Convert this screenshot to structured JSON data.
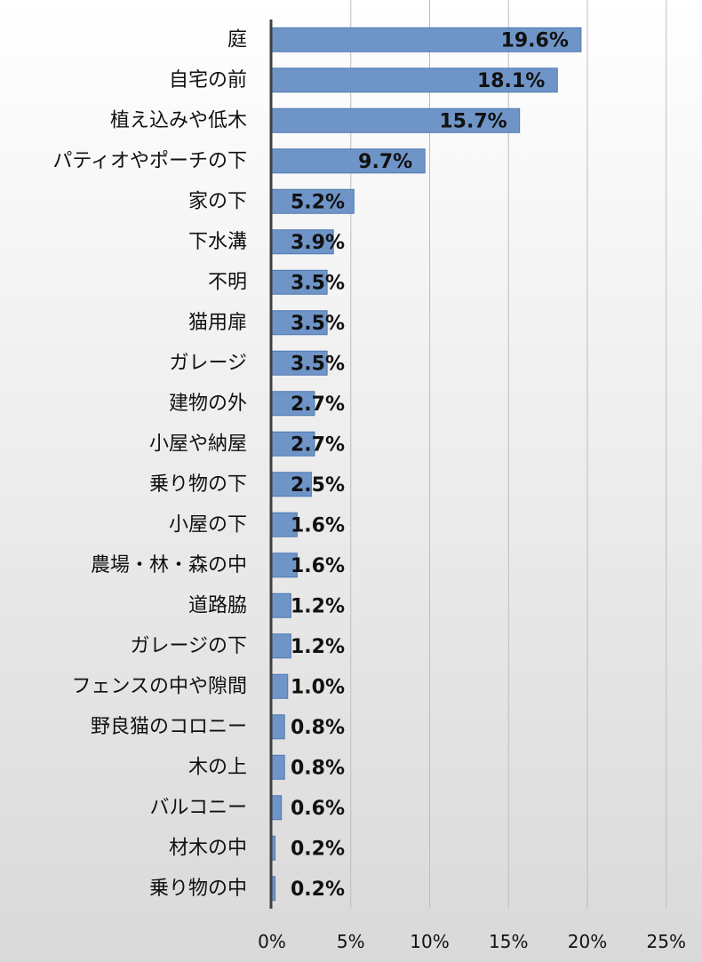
{
  "colors": {
    "background_top": "#ffffff",
    "background_bottom": "#d9d9d9",
    "bar_fill": "#6f95c8",
    "bar_stroke": "#4f78b3",
    "gridline": "#bdbdbd",
    "axis": "#404040"
  },
  "chart_data": {
    "type": "bar",
    "orientation": "horizontal",
    "categories": [
      "庭",
      "自宅の前",
      "植え込みや低木",
      "パティオやポーチの下",
      "家の下",
      "下水溝",
      "不明",
      "猫用扉",
      "ガレージ",
      "建物の外",
      "小屋や納屋",
      "乗り物の下",
      "小屋の下",
      "農場・林・森の中",
      "道路脇",
      "ガレージの下",
      "フェンスの中や隙間",
      "野良猫のコロニー",
      "木の上",
      "バルコニー",
      "材木の中",
      "乗り物の中"
    ],
    "values": [
      19.6,
      18.1,
      15.7,
      9.7,
      5.2,
      3.9,
      3.5,
      3.5,
      3.5,
      2.7,
      2.7,
      2.5,
      1.6,
      1.6,
      1.2,
      1.2,
      1.0,
      0.8,
      0.8,
      0.6,
      0.2,
      0.2
    ],
    "value_labels": [
      "19.6%",
      "18.1%",
      "15.7%",
      "9.7%",
      "5.2%",
      "3.9%",
      "3.5%",
      "3.5%",
      "3.5%",
      "2.7%",
      "2.7%",
      "2.5%",
      "1.6%",
      "1.6%",
      "1.2%",
      "1.2%",
      "1.0%",
      "0.8%",
      "0.8%",
      "0.6%",
      "0.2%",
      "0.2%"
    ],
    "x_ticks": [
      0,
      5,
      10,
      15,
      20,
      25
    ],
    "x_tick_labels": [
      "0%",
      "5%",
      "10%",
      "15%",
      "20%",
      "25%"
    ],
    "xlim": [
      0,
      25
    ],
    "title": "",
    "xlabel": "",
    "ylabel": "",
    "grid": "vertical",
    "legend": "none"
  }
}
